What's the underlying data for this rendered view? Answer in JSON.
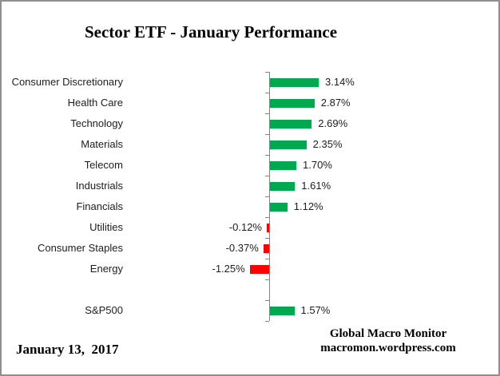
{
  "window": {
    "background": "#ffffff",
    "border_color": "#8f8f8f"
  },
  "colors": {
    "positive_bar": "#00a850",
    "negative_bar": "#ff0000",
    "axis": "#848484",
    "label_text": "#1d1d1d"
  },
  "chart_data": {
    "type": "bar",
    "orientation": "horizontal",
    "title": "Sector ETF - January Performance",
    "categories": [
      "Consumer Discretionary",
      "Health Care",
      "Technology",
      "Materials",
      "Telecom",
      "Industrials",
      "Financials",
      "Utilities",
      "Consumer Staples",
      "Energy",
      "",
      "S&P500"
    ],
    "values": [
      3.14,
      2.87,
      2.69,
      2.35,
      1.7,
      1.61,
      1.12,
      -0.12,
      -0.37,
      -1.25,
      null,
      1.57
    ],
    "value_labels": [
      "3.14%",
      "2.87%",
      "2.69%",
      "2.35%",
      "1.70%",
      "1.61%",
      "1.12%",
      "-0.12%",
      "-0.37%",
      "-1.25%",
      "",
      "1.57%"
    ],
    "xlabel": "",
    "ylabel": "",
    "grid": false,
    "legend": "none",
    "x_axis_tick_labels_visible": false
  },
  "footer": {
    "date": "January 13,  2017",
    "attribution_line1": "Global Macro Monitor",
    "attribution_line2": "macromon.wordpress.com"
  }
}
